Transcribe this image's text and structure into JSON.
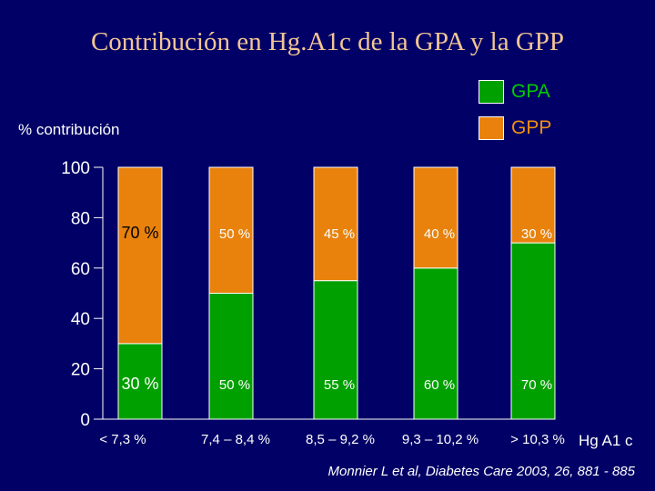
{
  "title": "Contribución en Hg.A1c de la GPA y la GPP",
  "legend": [
    {
      "label": "GPA",
      "color": "#00A000",
      "text_color": "#00CC00"
    },
    {
      "label": "GPP",
      "color": "#E8820C",
      "text_color": "#F09010"
    }
  ],
  "ylabel": "% contribución",
  "x_extra_label": "Hg A1 c",
  "source": "Monnier L et al, Diabetes Care 2003, 26, 881 - 885",
  "colors": {
    "background": "#000066",
    "gpa": "#00A000",
    "gpp": "#E8820C",
    "axis": "#ffffff"
  },
  "chart_data": {
    "type": "bar",
    "stacked": true,
    "title": "Contribución en Hg.A1c de la GPA y la GPP",
    "ylabel": "% contribución",
    "xlabel": "Hg A1 c",
    "ylim": [
      0,
      100
    ],
    "yticks": [
      0,
      20,
      40,
      60,
      80,
      100
    ],
    "categories": [
      "< 7,3 %",
      "7,4 – 8,4 %",
      "8,5 – 9,2 %",
      "9,3 – 10,2 %",
      "> 10,3 %"
    ],
    "series": [
      {
        "name": "GPA",
        "values": [
          30,
          50,
          55,
          60,
          70
        ],
        "labels": [
          "30 %",
          "50 %",
          "55 %",
          "60 %",
          "70 %"
        ]
      },
      {
        "name": "GPP",
        "values": [
          70,
          50,
          45,
          40,
          30
        ],
        "labels": [
          "70 %",
          "50 %",
          "45 %",
          "40 %",
          "30 %"
        ]
      }
    ]
  }
}
